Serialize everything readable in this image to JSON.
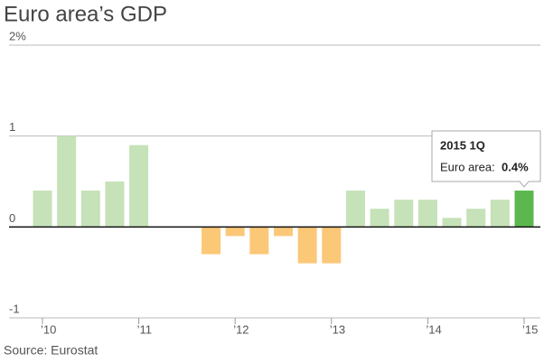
{
  "chart_data": {
    "type": "bar",
    "title": "Euro area’s GDP",
    "source": "Source: Eurostat",
    "categories": [
      "’10",
      null,
      null,
      null,
      "’11",
      null,
      null,
      null,
      "’12",
      null,
      null,
      null,
      "’13",
      null,
      null,
      null,
      "’14",
      null,
      null,
      null,
      "’15"
    ],
    "values": [
      0.4,
      1.0,
      0.4,
      0.5,
      0.9,
      0.0,
      0.0,
      -0.3,
      -0.1,
      -0.3,
      -0.1,
      -0.4,
      -0.4,
      0.4,
      0.2,
      0.3,
      0.3,
      0.1,
      0.2,
      0.3,
      0.4
    ],
    "value_labels": [
      null,
      null,
      null,
      null,
      null,
      null,
      null,
      null,
      null,
      null,
      null,
      null,
      null,
      null,
      null,
      null,
      null,
      null,
      null,
      null,
      "0.4%"
    ],
    "colors": [
      "#c6e2b8",
      "#c6e2b8",
      "#c6e2b8",
      "#c6e2b8",
      "#c6e2b8",
      "#c6e2b8",
      "#c6e2b8",
      "#fbc878",
      "#fbc878",
      "#fbc878",
      "#fbc878",
      "#fbc878",
      "#fbc878",
      "#c6e2b8",
      "#c6e2b8",
      "#c6e2b8",
      "#c6e2b8",
      "#c6e2b8",
      "#c6e2b8",
      "#c6e2b8",
      "#5cb84e"
    ],
    "ylim": [
      -1,
      2
    ],
    "yticks": [
      {
        "value": 2,
        "label": "2%"
      },
      1,
      0,
      -1
    ],
    "grid": true,
    "tooltip": {
      "title": "2015 1Q",
      "label": "Euro area:"
    }
  }
}
